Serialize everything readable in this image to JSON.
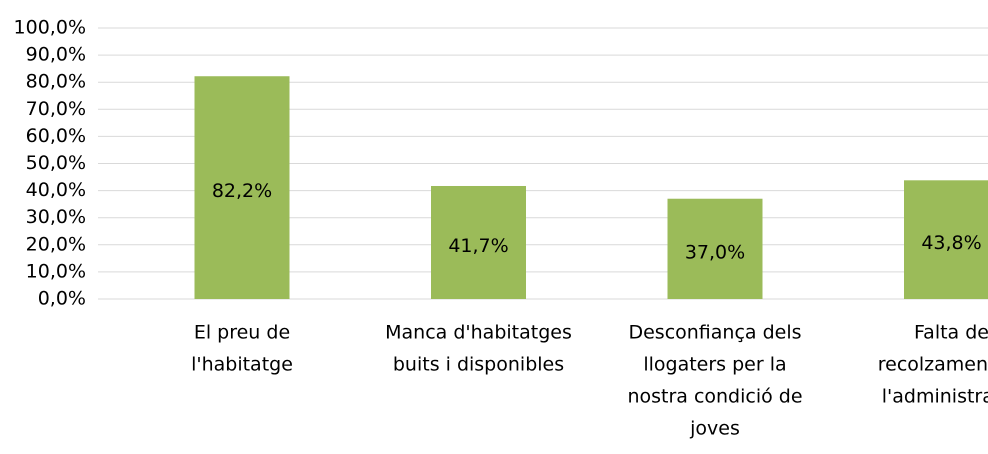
{
  "chart_data": {
    "type": "bar",
    "categories": [
      [
        "El preu de",
        "l'habitatge"
      ],
      [
        "Manca d'habitatges",
        "buits i disponibles"
      ],
      [
        "Desconfiança dels",
        "llogaters per la",
        "nostra condició de",
        "joves"
      ],
      [
        "Falta de",
        "recolzament de",
        "l'administració"
      ]
    ],
    "values": [
      82.2,
      41.7,
      37.0,
      43.8
    ],
    "value_labels": [
      "82,2%",
      "41,7%",
      "37,0%",
      "43,8%"
    ],
    "color": "#9bbb59",
    "ylim": [
      0,
      100
    ],
    "yticks": [
      {
        "value": 0,
        "label": "0,0%"
      },
      {
        "value": 10,
        "label": "10,0%"
      },
      {
        "value": 20,
        "label": "20,0%"
      },
      {
        "value": 30,
        "label": "30,0%"
      },
      {
        "value": 40,
        "label": "40,0%"
      },
      {
        "value": 50,
        "label": "50,0%"
      },
      {
        "value": 60,
        "label": "60,0%"
      },
      {
        "value": 70,
        "label": "70,0%"
      },
      {
        "value": 80,
        "label": "80,0%"
      },
      {
        "value": 90,
        "label": "90,0%"
      },
      {
        "value": 100,
        "label": "100,0%"
      }
    ],
    "grid": true
  }
}
